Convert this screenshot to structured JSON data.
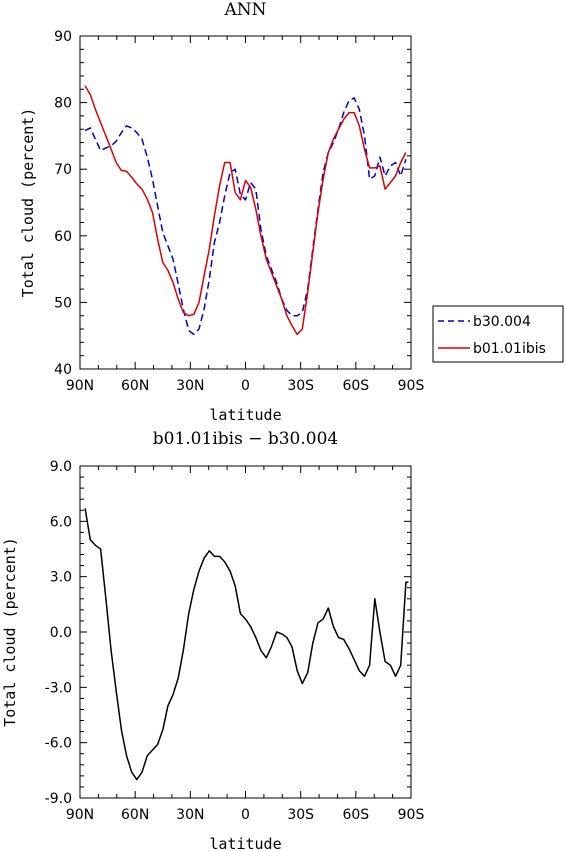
{
  "chart_data": [
    {
      "type": "line",
      "title": "ANN",
      "xlabel": "latitude",
      "ylabel": "Total cloud (percent)",
      "xlim": [
        90,
        -90
      ],
      "ylim": [
        40,
        90
      ],
      "x_ticks": [
        90,
        60,
        30,
        0,
        -30,
        -60,
        -90
      ],
      "x_tick_labels": [
        "90N",
        "60N",
        "30N",
        "0",
        "30S",
        "60S",
        "90S"
      ],
      "y_ticks": [
        40,
        50,
        60,
        70,
        80,
        90
      ],
      "y_tick_labels": [
        "40",
        "50",
        "60",
        "70",
        "80",
        "90"
      ],
      "grid": false,
      "legend_position": "right",
      "series": [
        {
          "name": "b30.004",
          "color": "#0000cc",
          "dash": "dashed",
          "x": [
            87.2,
            84.4,
            81.6,
            78.8,
            75.9,
            73.1,
            70.3,
            67.5,
            64.7,
            61.9,
            59.1,
            56.3,
            53.4,
            50.6,
            47.8,
            45.0,
            42.2,
            39.4,
            36.6,
            33.8,
            30.9,
            28.1,
            25.3,
            22.5,
            19.7,
            16.9,
            14.1,
            11.3,
            8.4,
            5.6,
            2.8,
            0.0,
            -2.8,
            -5.6,
            -8.4,
            -11.3,
            -14.1,
            -16.9,
            -19.7,
            -22.5,
            -25.3,
            -28.1,
            -30.9,
            -33.8,
            -36.6,
            -39.4,
            -42.2,
            -45.0,
            -47.8,
            -50.6,
            -53.4,
            -56.3,
            -59.1,
            -61.9,
            -64.7,
            -67.5,
            -70.3,
            -73.1,
            -75.9,
            -78.8,
            -81.6,
            -84.4,
            -87.2
          ],
          "values": [
            75.8,
            76.2,
            74.5,
            72.8,
            73.2,
            73.5,
            74.2,
            75.5,
            76.5,
            76.2,
            75.5,
            74.5,
            71.8,
            68.5,
            64.5,
            60.5,
            58.5,
            56.5,
            52.8,
            49.0,
            45.8,
            45.2,
            46.0,
            49.0,
            53.5,
            59.0,
            62.0,
            66.0,
            69.5,
            70.0,
            66.2,
            65.4,
            68.0,
            67.0,
            61.0,
            57.0,
            55.0,
            53.0,
            50.5,
            48.8,
            48.0,
            48.0,
            48.5,
            52.0,
            58.0,
            64.0,
            69.5,
            72.5,
            74.0,
            76.0,
            78.5,
            80.3,
            80.7,
            79.0,
            75.0,
            68.5,
            69.0,
            71.8,
            69.0,
            70.5,
            71.0,
            69.0,
            71.5
          ]
        },
        {
          "name": "b01.01ibis",
          "color": "#dd0000",
          "dash": "solid",
          "x": [
            87.2,
            84.4,
            81.6,
            78.8,
            75.9,
            73.1,
            70.3,
            67.5,
            64.7,
            61.9,
            59.1,
            56.3,
            53.4,
            50.6,
            47.8,
            45.0,
            42.2,
            39.4,
            36.6,
            33.8,
            30.9,
            28.1,
            25.3,
            22.5,
            19.7,
            16.9,
            14.1,
            11.3,
            8.4,
            5.6,
            2.8,
            0.0,
            -2.8,
            -5.6,
            -8.4,
            -11.3,
            -14.1,
            -16.9,
            -19.7,
            -22.5,
            -25.3,
            -28.1,
            -30.9,
            -33.8,
            -36.6,
            -39.4,
            -42.2,
            -45.0,
            -47.8,
            -50.6,
            -53.4,
            -56.3,
            -59.1,
            -61.9,
            -64.7,
            -67.5,
            -70.3,
            -73.1,
            -75.9,
            -78.8,
            -81.6,
            -84.4,
            -87.2
          ],
          "values": [
            82.5,
            81.2,
            79.0,
            77.0,
            75.0,
            73.0,
            71.0,
            69.8,
            69.7,
            68.8,
            67.8,
            67.0,
            65.5,
            63.5,
            59.5,
            56.0,
            54.8,
            53.0,
            50.5,
            48.5,
            48.0,
            48.2,
            50.0,
            54.0,
            58.0,
            63.0,
            67.5,
            71.0,
            71.0,
            66.5,
            65.4,
            68.3,
            67.3,
            64.0,
            60.0,
            56.5,
            54.5,
            52.5,
            50.5,
            48.0,
            46.5,
            45.2,
            46.0,
            51.5,
            57.5,
            63.5,
            68.5,
            72.5,
            74.5,
            76.0,
            77.5,
            78.5,
            78.5,
            76.5,
            73.0,
            70.2,
            70.2,
            70.5,
            67.0,
            68.0,
            69.0,
            71.0,
            72.5
          ]
        }
      ]
    },
    {
      "type": "line",
      "title": "b01.01ibis − b30.004",
      "xlabel": "latitude",
      "ylabel": "Total cloud (percent)",
      "xlim": [
        90,
        -90
      ],
      "ylim": [
        -9.0,
        9.0
      ],
      "x_ticks": [
        90,
        60,
        30,
        0,
        -30,
        -60,
        -90
      ],
      "x_tick_labels": [
        "90N",
        "60N",
        "30N",
        "0",
        "30S",
        "60S",
        "90S"
      ],
      "y_ticks": [
        -9.0,
        -6.0,
        -3.0,
        0.0,
        3.0,
        6.0,
        9.0
      ],
      "y_tick_labels": [
        "-9.0",
        "-6.0",
        "-3.0",
        "0.0",
        "3.0",
        "6.0",
        "9.0"
      ],
      "grid": false,
      "series": [
        {
          "color": "#000000",
          "dash": "solid",
          "x": [
            87.2,
            84.4,
            81.6,
            78.8,
            75.9,
            73.1,
            70.3,
            67.5,
            64.7,
            61.9,
            59.1,
            56.3,
            53.4,
            50.6,
            47.8,
            45.0,
            42.2,
            39.4,
            36.6,
            33.8,
            30.9,
            28.1,
            25.3,
            22.5,
            19.7,
            16.9,
            14.1,
            11.3,
            8.4,
            5.6,
            2.8,
            0.0,
            -2.8,
            -5.6,
            -8.4,
            -11.3,
            -14.1,
            -16.9,
            -19.7,
            -22.5,
            -25.3,
            -28.1,
            -30.9,
            -33.8,
            -36.6,
            -39.4,
            -42.2,
            -45.0,
            -47.8,
            -50.6,
            -53.4,
            -56.3,
            -59.1,
            -61.9,
            -64.7,
            -67.5,
            -70.3,
            -73.1,
            -75.9,
            -78.8,
            -81.6,
            -84.4,
            -87.2,
            -88.6
          ],
          "values": [
            6.7,
            5.0,
            4.7,
            4.5,
            1.8,
            -1.0,
            -3.2,
            -5.3,
            -6.7,
            -7.6,
            -8.0,
            -7.6,
            -6.7,
            -6.4,
            -6.1,
            -5.3,
            -4.0,
            -3.4,
            -2.5,
            -1.0,
            1.0,
            2.3,
            3.3,
            4.0,
            4.4,
            4.1,
            4.1,
            3.8,
            3.3,
            2.5,
            1.0,
            0.7,
            0.3,
            -0.3,
            -1.0,
            -1.4,
            -0.8,
            0.0,
            -0.1,
            -0.3,
            -0.8,
            -2.1,
            -2.8,
            -2.2,
            -0.6,
            0.5,
            0.7,
            1.3,
            0.3,
            -0.3,
            -0.4,
            -0.9,
            -1.5,
            -2.1,
            -2.4,
            -1.8,
            1.8,
            0.0,
            -1.6,
            -1.8,
            -2.4,
            -1.8,
            2.7,
            2.7
          ]
        }
      ]
    }
  ]
}
